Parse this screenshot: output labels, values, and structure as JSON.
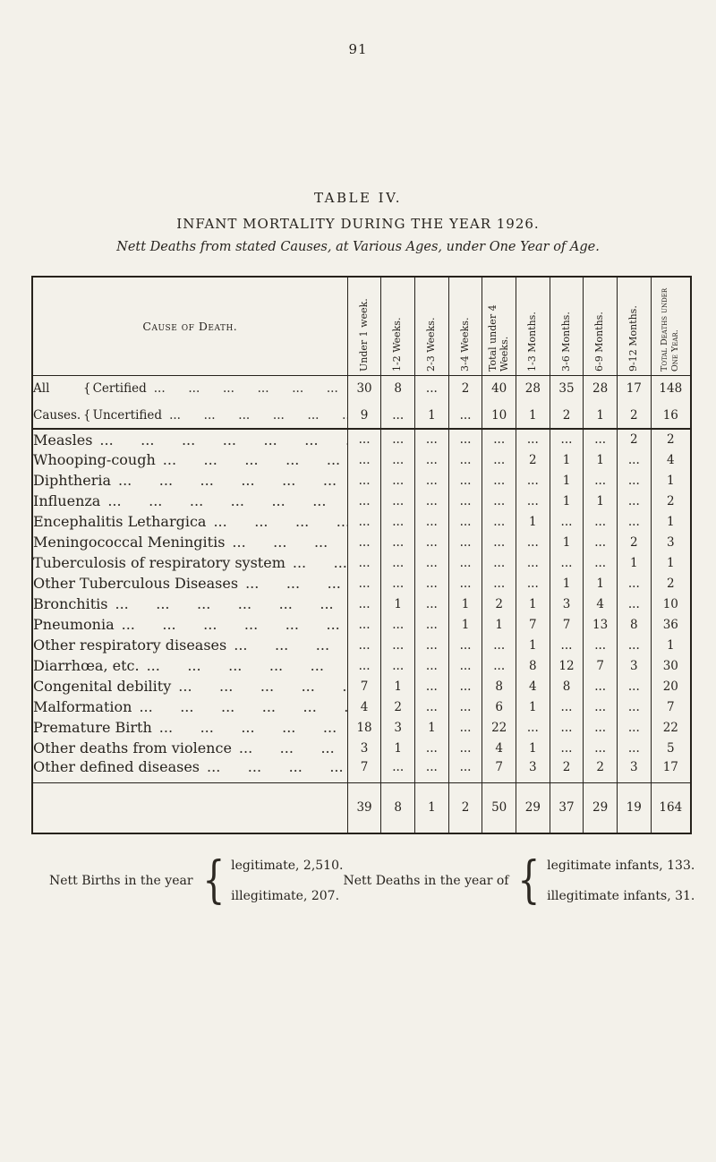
{
  "page": {
    "number": "91",
    "table_label": "TABLE IV.",
    "title": "INFANT MORTALITY DURING THE YEAR 1926.",
    "subtitle": "Nett Deaths from stated Causes, at Various Ages, under One Year of Age."
  },
  "leader_dots": "...      ...      ...      ...      ...      ...      ...      ...      ...      ...      ...      ...",
  "table": {
    "corner_header": "Cause of Death.",
    "col_headers": [
      "Under 1 week.",
      "1-2 Weeks.",
      "2-3 Weeks.",
      "3-4 Weeks.",
      "Total under 4 Weeks.",
      "1-3 Months.",
      "3-6 Months.",
      "6-9 Months.",
      "9-12 Months.",
      "Total Deaths under One Year."
    ],
    "all_causes": {
      "word_top": "All",
      "word_bottom": "Causes.",
      "brace": "{",
      "rows": [
        {
          "label": "Certified",
          "values": [
            "30",
            "8",
            "...",
            "2",
            "40",
            "28",
            "35",
            "28",
            "17",
            "148"
          ]
        },
        {
          "label": "Uncertified",
          "values": [
            "9",
            "...",
            "1",
            "...",
            "10",
            "1",
            "2",
            "1",
            "2",
            "16"
          ]
        }
      ]
    },
    "rows": [
      {
        "label": "Measles",
        "values": [
          "...",
          "...",
          "...",
          "...",
          "...",
          "...",
          "...",
          "...",
          "2",
          "2"
        ]
      },
      {
        "label": "Whooping-cough",
        "values": [
          "...",
          "...",
          "...",
          "...",
          "...",
          "2",
          "1",
          "1",
          "...",
          "4"
        ]
      },
      {
        "label": "Diphtheria",
        "values": [
          "...",
          "...",
          "...",
          "...",
          "...",
          "...",
          "1",
          "...",
          "...",
          "1"
        ]
      },
      {
        "label": "Influenza",
        "values": [
          "...",
          "...",
          "...",
          "...",
          "...",
          "...",
          "1",
          "1",
          "...",
          "2"
        ]
      },
      {
        "label": "Encephalitis Lethargica",
        "values": [
          "...",
          "...",
          "...",
          "...",
          "...",
          "1",
          "...",
          "...",
          "...",
          "1"
        ]
      },
      {
        "label": "Meningococcal Meningitis",
        "values": [
          "...",
          "...",
          "...",
          "...",
          "...",
          "...",
          "1",
          "...",
          "2",
          "3"
        ]
      },
      {
        "label": "Tuberculosis of respiratory system",
        "values": [
          "...",
          "...",
          "...",
          "...",
          "...",
          "...",
          "...",
          "...",
          "1",
          "1"
        ]
      },
      {
        "label": "Other Tuberculous Diseases",
        "values": [
          "...",
          "...",
          "...",
          "...",
          "...",
          "...",
          "1",
          "1",
          "...",
          "2"
        ]
      },
      {
        "label": "Bronchitis",
        "values": [
          "...",
          "1",
          "...",
          "1",
          "2",
          "1",
          "3",
          "4",
          "...",
          "10"
        ]
      },
      {
        "label": "Pneumonia",
        "values": [
          "...",
          "...",
          "...",
          "1",
          "1",
          "7",
          "7",
          "13",
          "8",
          "36"
        ]
      },
      {
        "label": "Other respiratory diseases",
        "values": [
          "...",
          "...",
          "...",
          "...",
          "...",
          "1",
          "...",
          "...",
          "...",
          "1"
        ]
      },
      {
        "label": "Diarrhœa, etc.",
        "values": [
          "...",
          "...",
          "...",
          "...",
          "...",
          "8",
          "12",
          "7",
          "3",
          "30"
        ]
      },
      {
        "label": "Congenital debility",
        "values": [
          "7",
          "1",
          "...",
          "...",
          "8",
          "4",
          "8",
          "...",
          "...",
          "20"
        ]
      },
      {
        "label": "Malformation",
        "values": [
          "4",
          "2",
          "...",
          "...",
          "6",
          "1",
          "...",
          "...",
          "...",
          "7"
        ]
      },
      {
        "label": "Premature Birth",
        "values": [
          "18",
          "3",
          "1",
          "...",
          "22",
          "...",
          "...",
          "...",
          "...",
          "22"
        ]
      },
      {
        "label": "Other deaths from violence",
        "values": [
          "3",
          "1",
          "...",
          "...",
          "4",
          "1",
          "...",
          "...",
          "...",
          "5"
        ]
      },
      {
        "label": "Other defined diseases",
        "values": [
          "7",
          "...",
          "...",
          "...",
          "7",
          "3",
          "2",
          "2",
          "3",
          "17"
        ]
      }
    ],
    "totals": [
      "39",
      "8",
      "1",
      "2",
      "50",
      "29",
      "37",
      "29",
      "19",
      "164"
    ]
  },
  "footer": {
    "births_label": "Nett Births in the year",
    "births_brace": "{",
    "births_lines": [
      "legitimate, 2,510.",
      "illegitimate, 207."
    ],
    "deaths_label": "Nett Deaths in the year of",
    "deaths_brace": "{",
    "deaths_lines": [
      "legitimate infants, 133.",
      "illegitimate infants, 31."
    ]
  }
}
